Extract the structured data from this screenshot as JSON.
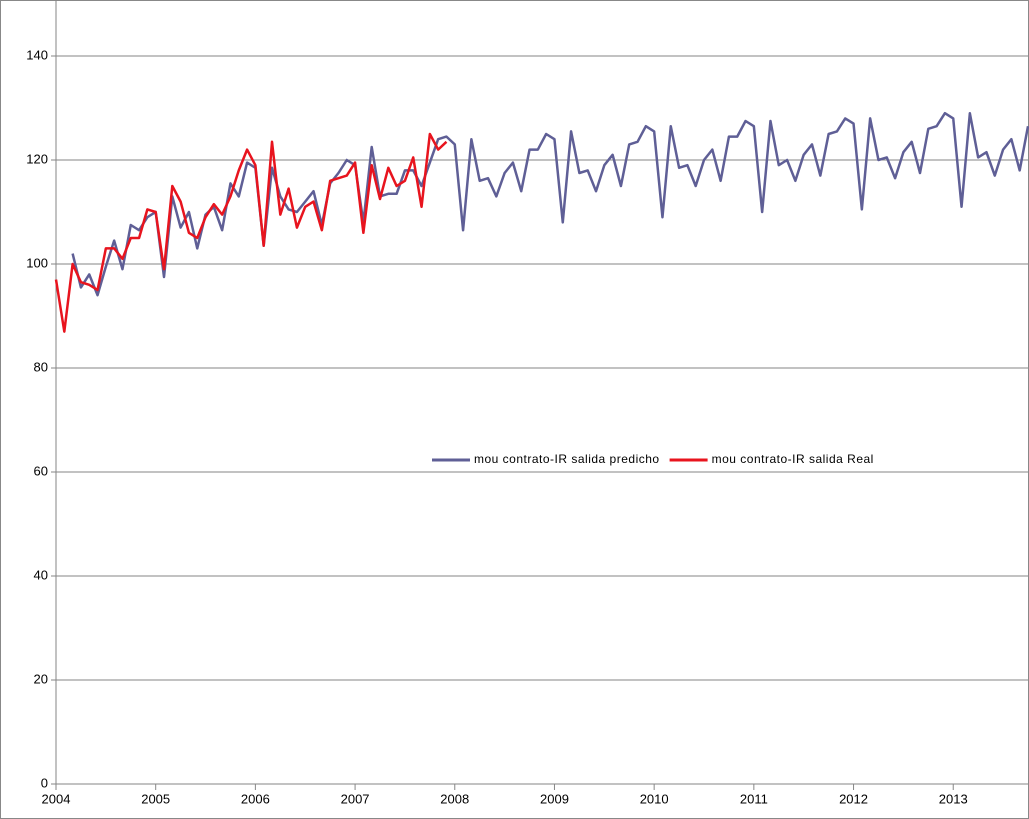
{
  "chart_data": {
    "type": "line",
    "categories": [
      "2004",
      null,
      null,
      null,
      null,
      null,
      null,
      null,
      null,
      null,
      null,
      null,
      "2005",
      null,
      null,
      null,
      null,
      null,
      null,
      null,
      null,
      null,
      null,
      null,
      "2006",
      null,
      null,
      null,
      null,
      null,
      null,
      null,
      null,
      null,
      null,
      null,
      "2007",
      null,
      null,
      null,
      null,
      null,
      null,
      null,
      null,
      null,
      null,
      null,
      "2008",
      null,
      null,
      null,
      null,
      null,
      null,
      null,
      null,
      null,
      null,
      null,
      "2009",
      null,
      null,
      null,
      null,
      null,
      null,
      null,
      null,
      null,
      null,
      null,
      "2010",
      null,
      null,
      null,
      null,
      null,
      null,
      null,
      null,
      null,
      null,
      null,
      "2011",
      null,
      null,
      null,
      null,
      null,
      null,
      null,
      null,
      null,
      null,
      null,
      "2012",
      null,
      null,
      null,
      null,
      null,
      null,
      null,
      null,
      null,
      null,
      null,
      "2013",
      null,
      null,
      null,
      null,
      null,
      null,
      null,
      null,
      null
    ],
    "series": [
      {
        "name": "mou contrato-IR salida predicho",
        "color": "#5f5f96",
        "values": [
          null,
          null,
          102,
          95.5,
          98,
          94,
          99.5,
          104.5,
          99,
          107.5,
          106.5,
          109,
          110,
          97.5,
          113,
          107,
          110,
          103,
          109.5,
          111,
          106.5,
          115.5,
          113,
          119.5,
          118.5,
          103.5,
          118.5,
          113,
          110.5,
          110,
          112,
          114,
          107.5,
          115.5,
          117.5,
          120,
          119,
          108,
          122.5,
          113,
          113.5,
          113.5,
          118,
          118,
          115,
          119.5,
          124,
          124.5,
          123,
          106.5,
          124,
          116,
          116.5,
          113,
          117.5,
          119.5,
          114,
          122,
          122,
          125,
          124,
          108,
          125.5,
          117.5,
          118,
          114,
          119,
          121,
          115,
          123,
          123.5,
          126.5,
          125.5,
          109,
          126.5,
          118.5,
          119,
          115,
          120,
          122,
          116,
          124.5,
          124.5,
          127.5,
          126.5,
          110,
          127.5,
          119,
          120,
          116,
          121,
          123,
          117,
          125,
          125.5,
          128,
          127,
          110.5,
          128,
          120,
          120.5,
          116.5,
          121.5,
          123.5,
          117.5,
          126,
          126.5,
          129,
          128,
          111,
          129,
          120.5,
          121.5,
          117,
          122,
          124,
          118,
          126.5
        ]
      },
      {
        "name": "mou contrato-IR salida Real",
        "color": "#e8141e",
        "values": [
          97,
          87,
          100,
          96.5,
          96,
          95,
          103,
          103,
          101,
          105,
          105,
          110.5,
          110,
          99,
          115,
          112,
          106,
          105,
          109,
          111.5,
          109.5,
          113,
          118,
          122,
          119,
          103.5,
          123.5,
          109.5,
          114.5,
          107,
          111,
          112,
          106.5,
          116,
          116.5,
          117,
          119.5,
          106,
          119,
          112.5,
          118.5,
          115,
          116,
          120.5,
          111,
          125,
          122,
          123.5,
          null,
          null,
          null,
          null,
          null,
          null,
          null,
          null,
          null,
          null,
          null,
          null,
          null,
          null,
          null,
          null,
          null,
          null,
          null,
          null,
          null,
          null,
          null,
          null,
          null,
          null,
          null,
          null,
          null,
          null,
          null,
          null,
          null,
          null,
          null,
          null,
          null,
          null,
          null,
          null,
          null,
          null,
          null,
          null,
          null,
          null,
          null,
          null,
          null,
          null,
          null,
          null,
          null,
          null,
          null,
          null,
          null,
          null,
          null,
          null,
          null,
          null,
          null,
          null,
          null,
          null,
          null,
          null,
          null,
          null
        ]
      }
    ],
    "ylim": [
      0,
      140
    ],
    "yticks": [
      0,
      20,
      40,
      60,
      80,
      100,
      120,
      140
    ],
    "grid": true,
    "legend": "center"
  }
}
